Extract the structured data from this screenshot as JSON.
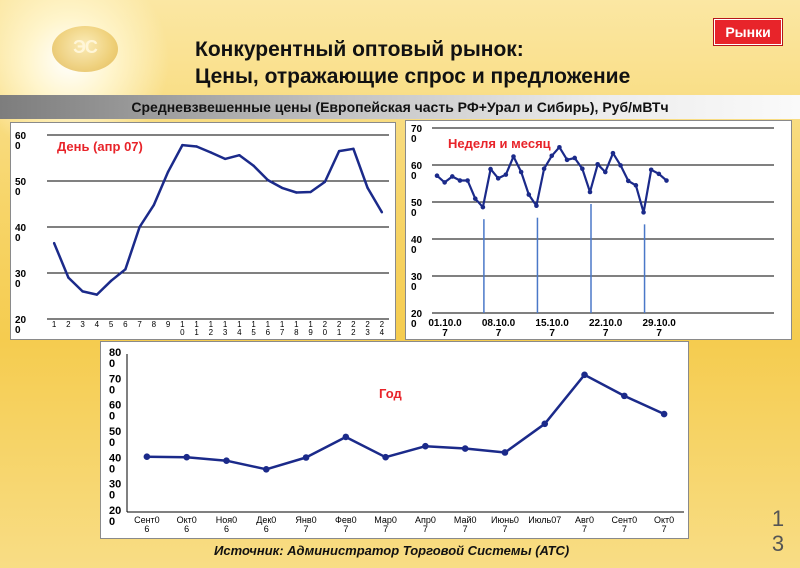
{
  "header": {
    "logo_text": "ЭС",
    "badge": "Рынки",
    "title_line1": "Конкурентный оптовый рынок:",
    "title_line2": "Цены, отражающие спрос и предложение",
    "subtitle": "Средневзвешенные цены (Европейская часть РФ+Урал и Сибирь), Руб/мВТч"
  },
  "footer": {
    "source": "Источник: Администратор Торговой Системы (АТС)",
    "slide_number_line1": "1",
    "slide_number_line2": "3"
  },
  "colors": {
    "line": "#1b2a8a",
    "grid": "#000000",
    "annotation": "#e8242a",
    "badge": "#e8242a",
    "vline": "#4a78c8"
  },
  "chart_data": [
    {
      "type": "line",
      "annotation": "День (апр 07)",
      "ylim": [
        200,
        600
      ],
      "y_ticks": [
        200,
        300,
        400,
        500,
        600
      ],
      "y_tick_labels": [
        "20\n0",
        "30\n0",
        "40\n0",
        "50\n0",
        "60\n0"
      ],
      "categories": [
        "1",
        "2",
        "3",
        "4",
        "5",
        "6",
        "7",
        "8",
        "9",
        "10",
        "11",
        "12",
        "13",
        "14",
        "15",
        "16",
        "17",
        "18",
        "19",
        "20",
        "21",
        "22",
        "23",
        "24"
      ],
      "category_labels": [
        "1",
        "2",
        "3",
        "4",
        "5",
        "6",
        "7",
        "8",
        "9",
        "1\n0",
        "1\n1",
        "1\n2",
        "1\n3",
        "1\n4",
        "1\n5",
        "1\n6",
        "1\n7",
        "1\n8",
        "1\n9",
        "2\n0",
        "2\n1",
        "2\n2",
        "2\n3",
        "2\n4"
      ],
      "values": [
        365,
        290,
        260,
        253,
        283,
        308,
        400,
        448,
        520,
        578,
        575,
        562,
        548,
        556,
        533,
        502,
        485,
        475,
        476,
        498,
        565,
        570,
        485,
        432
      ],
      "grid": "horizontal"
    },
    {
      "type": "line",
      "annotation": "Неделя и месяц",
      "ylim": [
        200,
        700
      ],
      "y_ticks": [
        200,
        300,
        400,
        500,
        600,
        700
      ],
      "y_tick_labels": [
        "20\n0",
        "30\n0",
        "40\n0",
        "50\n0",
        "60\n0",
        "70\n0"
      ],
      "x_tick_labels": [
        "01.10.0\n7",
        "08.10.0\n7",
        "15.10.0\n7",
        "22.10.0\n7",
        "29.10.0\n7"
      ],
      "x_tick_index": [
        0,
        7,
        14,
        21,
        28
      ],
      "weekly_markers": [
        7,
        14,
        21,
        28
      ],
      "values": [
        571,
        553,
        569,
        558,
        558,
        509,
        486,
        589,
        564,
        574,
        623,
        581,
        520,
        490,
        590,
        625,
        648,
        614,
        619,
        590,
        527,
        602,
        581,
        632,
        599,
        557,
        545,
        472,
        587,
        576,
        558
      ],
      "grid": "horizontal"
    },
    {
      "type": "line",
      "annotation": "Год",
      "ylim": [
        200,
        800
      ],
      "y_ticks": [
        200,
        300,
        400,
        500,
        600,
        700,
        800
      ],
      "y_tick_labels": [
        "20\n0",
        "30\n0",
        "40\n0",
        "50\n0",
        "60\n0",
        "70\n0",
        "80\n0"
      ],
      "categories": [
        "Сент06",
        "Окт06",
        "Ноя06",
        "Дек06",
        "Янв07",
        "Фев07",
        "Мар07",
        "Апр07",
        "Май07",
        "Июнь07",
        "Июль07",
        "Авг07",
        "Сент07",
        "Окт07"
      ],
      "category_labels": [
        "Сент0\n6",
        "Окт0\n6",
        "Ноя0\n6",
        "Дек0\n6",
        "Янв0\n7",
        "Фев0\n7",
        "Мар0\n7",
        "Апр0\n7",
        "Май0\n7",
        "Июнь0\n7",
        "Июль07",
        "Авг0\n7",
        "Сент0\n7",
        "Окт0\n7"
      ],
      "values": [
        410,
        408,
        395,
        362,
        407,
        485,
        408,
        450,
        441,
        426,
        535,
        721,
        641,
        572
      ],
      "grid": "none"
    }
  ]
}
